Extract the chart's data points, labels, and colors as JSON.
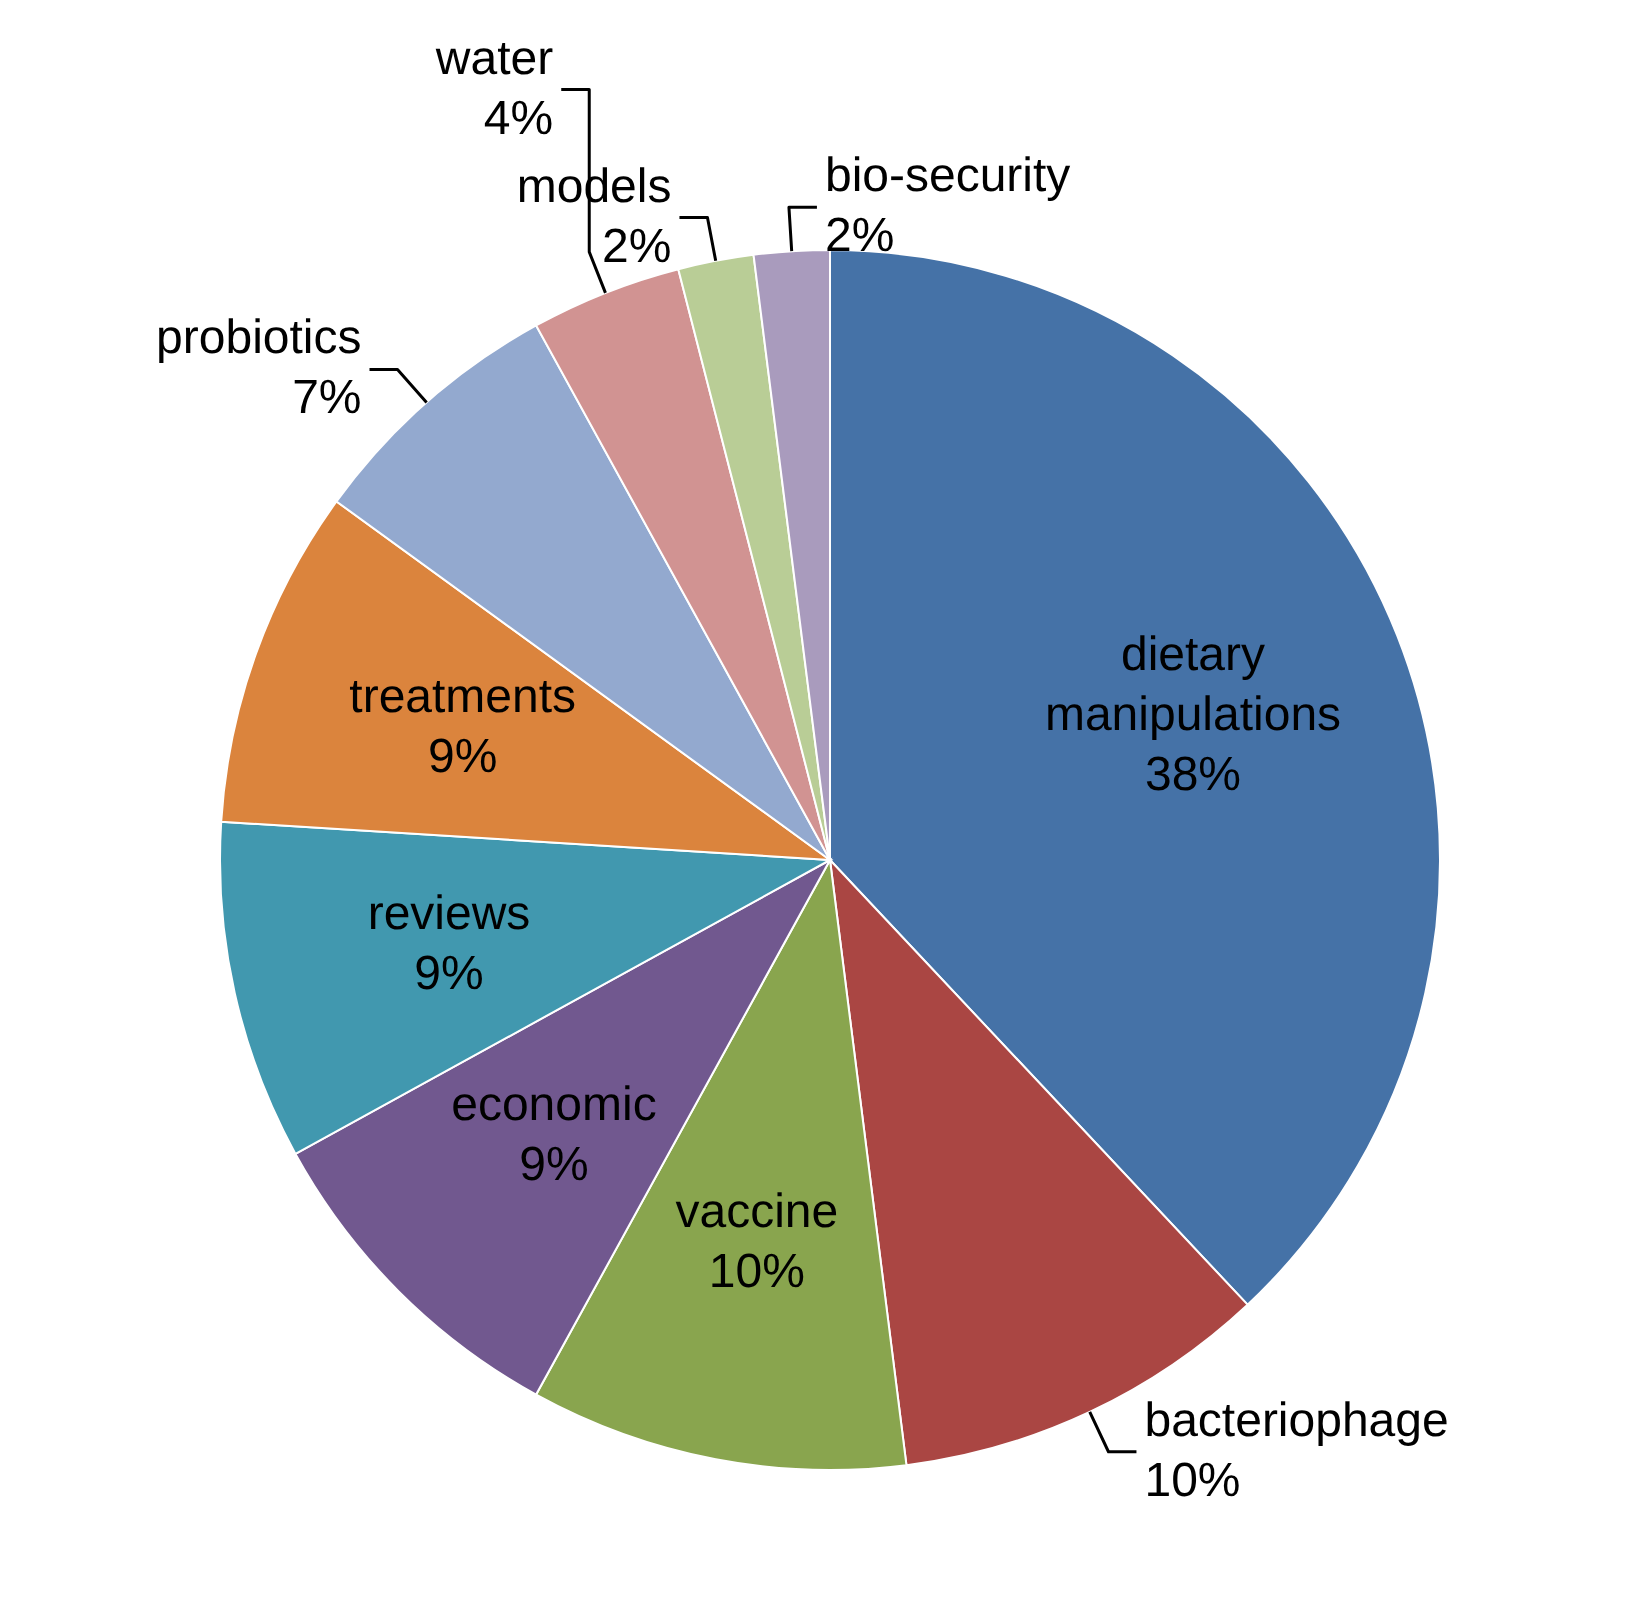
{
  "chart_data": {
    "type": "pie",
    "categories": [
      "dietary manipulations",
      "bacteriophage",
      "vaccine",
      "economic",
      "reviews",
      "treatments",
      "probiotics",
      "water",
      "models",
      "bio-security"
    ],
    "values": [
      38,
      10,
      10,
      9,
      9,
      9,
      7,
      4,
      2,
      2
    ],
    "value_labels": [
      "38%",
      "10%",
      "10%",
      "9%",
      "9%",
      "9%",
      "7%",
      "4%",
      "2%",
      "2%"
    ],
    "colors": [
      "#4572a7",
      "#aa4643",
      "#89a54e",
      "#71588f",
      "#4198af",
      "#db843d",
      "#93a9cf",
      "#d19392",
      "#b9cd96",
      "#a99bbd"
    ],
    "legend": false
  }
}
